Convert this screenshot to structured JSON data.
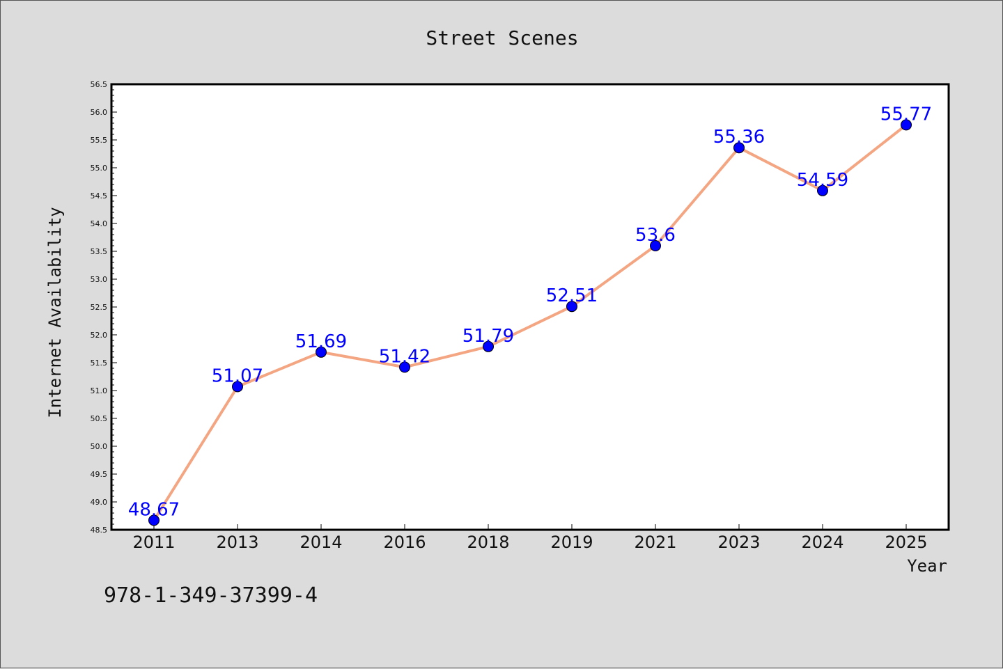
{
  "chart_data": {
    "type": "line",
    "title": "Street Scenes",
    "xlabel": "Year",
    "ylabel": "Internet Availability",
    "categories": [
      "2011",
      "2013",
      "2014",
      "2016",
      "2018",
      "2019",
      "2021",
      "2023",
      "2024",
      "2025"
    ],
    "series": [
      {
        "values": [
          48.67,
          51.07,
          51.69,
          51.42,
          51.79,
          52.51,
          53.6,
          55.36,
          54.59,
          55.77
        ],
        "labels": [
          "48.67",
          "51.07",
          "51.69",
          "51.42",
          "51.79",
          "52.51",
          "53.6",
          "55.36",
          "54.59",
          "55.77"
        ],
        "line_color": "#f4a582",
        "marker_color": "#0000ff"
      }
    ],
    "ylim": [
      48.5,
      56.5
    ],
    "yticks": [
      "48.5",
      "49.0",
      "49.5",
      "50.0",
      "50.5",
      "51.0",
      "51.5",
      "52.0",
      "52.5",
      "53.0",
      "53.5",
      "54.0",
      "54.5",
      "55.0",
      "55.5",
      "56.0",
      "56.5"
    ],
    "grid": false,
    "legend": "none",
    "label_color": "#0000ff"
  },
  "footer_text": "978-1-349-37399-4"
}
